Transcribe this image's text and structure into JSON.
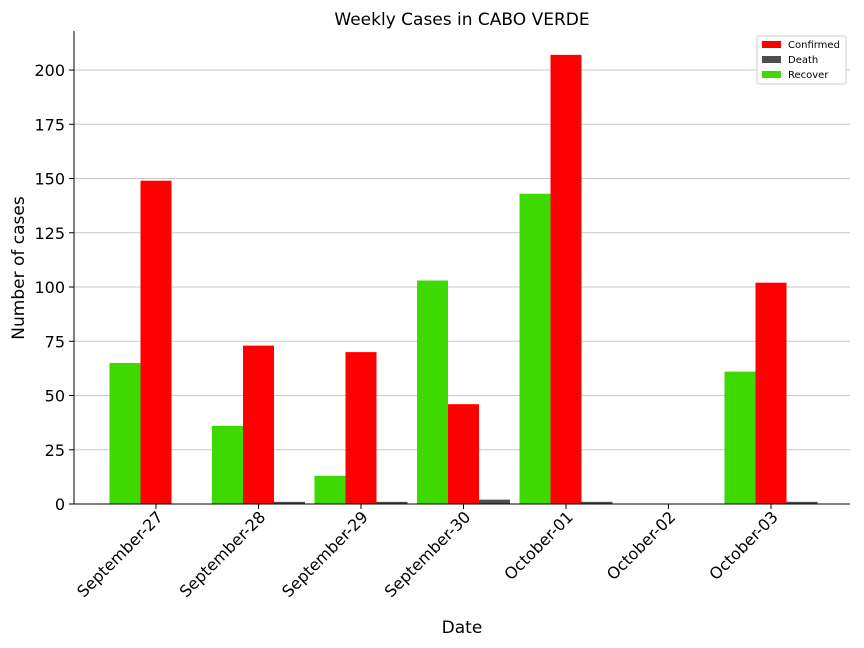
{
  "chart_data": {
    "type": "bar",
    "title": "Weekly Cases in CABO VERDE",
    "xlabel": "Date",
    "ylabel": "Number of cases",
    "categories": [
      "September-27",
      "September-28",
      "September-29",
      "September-30",
      "October-01",
      "October-02",
      "October-03"
    ],
    "series": [
      {
        "name": "Recover",
        "color": "#3dd900",
        "values": [
          65,
          36,
          13,
          103,
          143,
          0,
          61
        ]
      },
      {
        "name": "Confirmed",
        "color": "#ff0000",
        "values": [
          149,
          73,
          70,
          46,
          207,
          0,
          102
        ]
      },
      {
        "name": "Death",
        "color": "#4d4d4d",
        "values": [
          0,
          1,
          1,
          2,
          1,
          0,
          1
        ]
      }
    ],
    "legend_order": [
      "Confirmed",
      "Death",
      "Recover"
    ],
    "ylim": [
      0,
      218
    ],
    "yticks": [
      0,
      25,
      50,
      75,
      100,
      125,
      150,
      175,
      200
    ],
    "grid": "horizontal",
    "legend_position": "top-right"
  }
}
